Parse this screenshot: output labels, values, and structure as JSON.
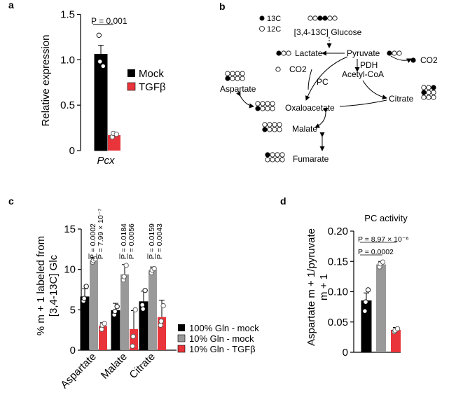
{
  "colors": {
    "mock100": "#000000",
    "mock10": "#999999",
    "tgfb": "#e8343a",
    "dot_open": "#ffffff"
  },
  "panel_a": {
    "label": "a",
    "ylabel": "Relative expression",
    "p_value": "P = 0.001",
    "legend": [
      "Mock",
      "TGFβ"
    ]
  },
  "panel_b": {
    "label": "b",
    "legend_13c": "13C",
    "legend_12c": "12C",
    "glucose": "[3,4-13C] Glucose",
    "lactate": "Lactate",
    "pyruvate": "Pyruvate",
    "co2_top": "CO2",
    "co2_left": "CO2",
    "pdh": "PDH",
    "pc": "PC",
    "acetyl_coa": "Acetyl-CoA",
    "aspartate": "Aspartate",
    "oxaloacetate": "Oxaloacetate",
    "citrate": "Citrate",
    "malate": "Malate",
    "fumarate": "Fumarate"
  },
  "panel_c": {
    "label": "c",
    "ylabel_line1": "% m + 1 labeled from",
    "ylabel_line2": "[3,4-13C] Glc",
    "pvals": [
      {
        "p1": "P = 0.0002",
        "p2": "P = 7.99 × 10⁻⁷"
      },
      {
        "p1": "P = 0.0184",
        "p2": "P = 0.0056"
      },
      {
        "p1": "P = 0.0159",
        "p2": "P = 0.0043"
      }
    ],
    "legend": [
      "100% Gln - mock",
      "10% Gln - mock",
      "10% Gln - TGFβ"
    ]
  },
  "panel_d": {
    "label": "d",
    "title": "PC activity",
    "ylabel_line1": "Aspartate m + 1/pyruvate",
    "ylabel_line2": "m + 1",
    "p1": "P = 8.97 × 10⁻⁶",
    "p2": "P = 0.0002"
  },
  "chart_data": [
    {
      "type": "bar",
      "panel": "a",
      "categories": [
        "Pcx"
      ],
      "series": [
        {
          "name": "Mock",
          "values": [
            1.06
          ],
          "errors": [
            0.1
          ],
          "points": [
            [
              1.27,
              0.98,
              0.93
            ]
          ]
        },
        {
          "name": "TGFβ",
          "values": [
            0.17
          ],
          "errors": [
            0.02
          ],
          "points": [
            [
              0.15,
              0.19,
              0.18
            ]
          ]
        }
      ],
      "xlabel": "Pcx",
      "ylabel": "Relative expression",
      "ylim": [
        0,
        1.55
      ],
      "yticks": [
        0,
        0.5,
        1.0,
        1.5
      ]
    },
    {
      "type": "bar",
      "panel": "c",
      "categories": [
        "Aspartate",
        "Malate",
        "Citrate"
      ],
      "series": [
        {
          "name": "100% Gln - mock",
          "values": [
            6.6,
            4.9,
            6.0
          ],
          "errors": [
            1.0,
            0.9,
            1.3
          ],
          "points": [
            [
              6.1,
              6.4,
              7.9
            ],
            [
              4.4,
              4.8,
              5.4
            ],
            [
              5.6,
              5.1,
              7.4
            ]
          ]
        },
        {
          "name": "10% Gln - mock",
          "values": [
            11.1,
            9.4,
            9.9
          ],
          "errors": [
            0.4,
            1.2,
            0.4
          ],
          "points": [
            [
              10.9,
              11.1,
              11.3
            ],
            [
              8.7,
              9.1,
              10.5
            ],
            [
              9.6,
              9.9,
              10.1
            ]
          ]
        },
        {
          "name": "10% Gln - TGFβ",
          "values": [
            3.0,
            2.6,
            4.1
          ],
          "errors": [
            0.4,
            2.3,
            2.1
          ],
          "points": [
            [
              2.6,
              3.1,
              3.3
            ],
            [
              0.5,
              1.7,
              5.0
            ],
            [
              3.1,
              3.6,
              5.5
            ]
          ]
        }
      ],
      "ylabel": "% m + 1 labeled from [3,4-13C] Glc",
      "ylim": [
        0,
        15
      ],
      "yticks": [
        0,
        5,
        10,
        15
      ]
    },
    {
      "type": "bar",
      "panel": "d",
      "title": "PC activity",
      "categories": [
        ""
      ],
      "series": [
        {
          "name": "100% Gln - mock",
          "values": [
            0.085
          ],
          "errors": [
            0.013
          ],
          "points": [
            [
              0.068,
              0.083,
              0.103
            ]
          ]
        },
        {
          "name": "10% Gln - mock",
          "values": [
            0.145
          ],
          "errors": [
            0.005
          ],
          "points": [
            [
              0.141,
              0.146,
              0.149
            ]
          ]
        },
        {
          "name": "10% Gln - TGFβ",
          "values": [
            0.037
          ],
          "errors": [
            0.004
          ],
          "points": [
            [
              0.034,
              0.036,
              0.039
            ]
          ]
        }
      ],
      "ylabel": "Aspartate m + 1/pyruvate m + 1",
      "ylim": [
        0,
        0.2
      ],
      "yticks": [
        0,
        0.05,
        0.1,
        0.15,
        0.2
      ]
    }
  ]
}
